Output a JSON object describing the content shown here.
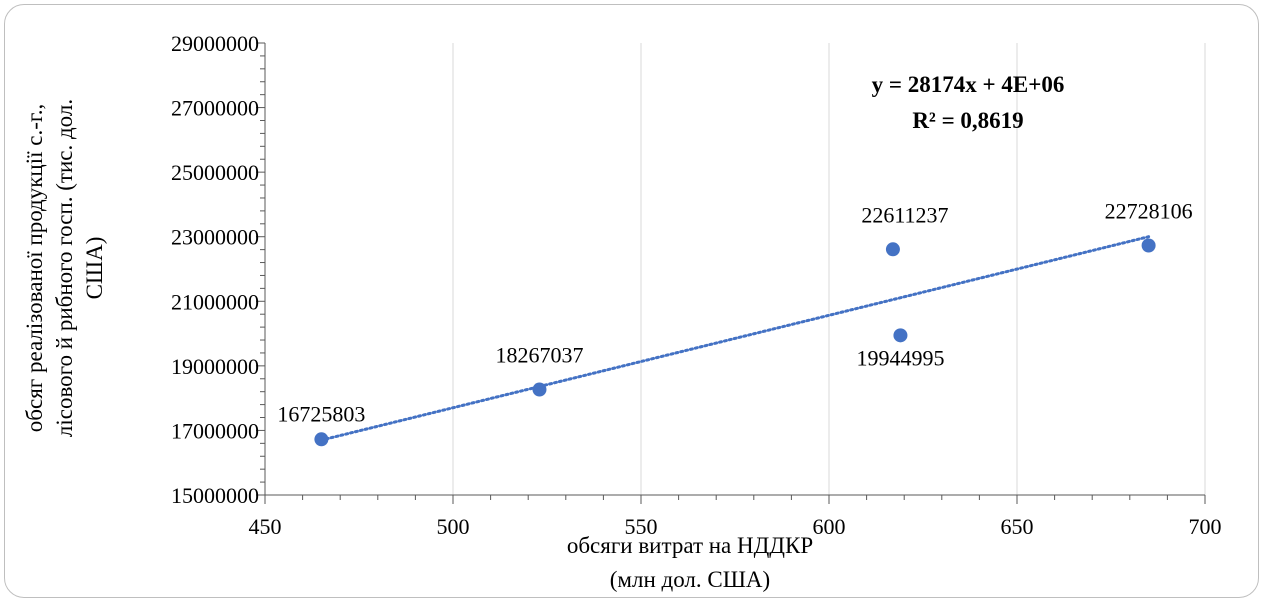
{
  "chart_data": {
    "type": "scatter",
    "title": "",
    "xlabel": [
      "обсяги витрат на НДДКР",
      "(млн дол. США)"
    ],
    "ylabel": [
      "обсяг реалізованої продукції с.-г.,",
      "лісового й рибного госп. (тис. дол.",
      "США)"
    ],
    "xlim": [
      450,
      700
    ],
    "ylim": [
      15000000,
      29000000
    ],
    "x_ticks": [
      "450",
      "500",
      "550",
      "600",
      "650",
      "700"
    ],
    "y_ticks": [
      "15000000",
      "17000000",
      "19000000",
      "21000000",
      "23000000",
      "25000000",
      "27000000",
      "29000000"
    ],
    "grid": {
      "vertical": true,
      "horizontal": false
    },
    "series": [
      {
        "points": [
          {
            "x": 465,
            "y": 16725803,
            "label": "16725803"
          },
          {
            "x": 523,
            "y": 18267037,
            "label": "18267037"
          },
          {
            "x": 617,
            "y": 22611237,
            "label": "22611237"
          },
          {
            "x": 619,
            "y": 19944995,
            "label": "19944995"
          },
          {
            "x": 685,
            "y": 22728106,
            "label": "22728106"
          }
        ],
        "color": "#4472c4"
      }
    ],
    "trendline": {
      "type": "linear",
      "style": "dotted",
      "color": "#4472c4",
      "x_range": [
        465,
        685
      ],
      "y_range": [
        16700000,
        23000000
      ],
      "equation": "y = 28174x + 4E+06",
      "r_squared": "R² = 0,8619"
    }
  }
}
